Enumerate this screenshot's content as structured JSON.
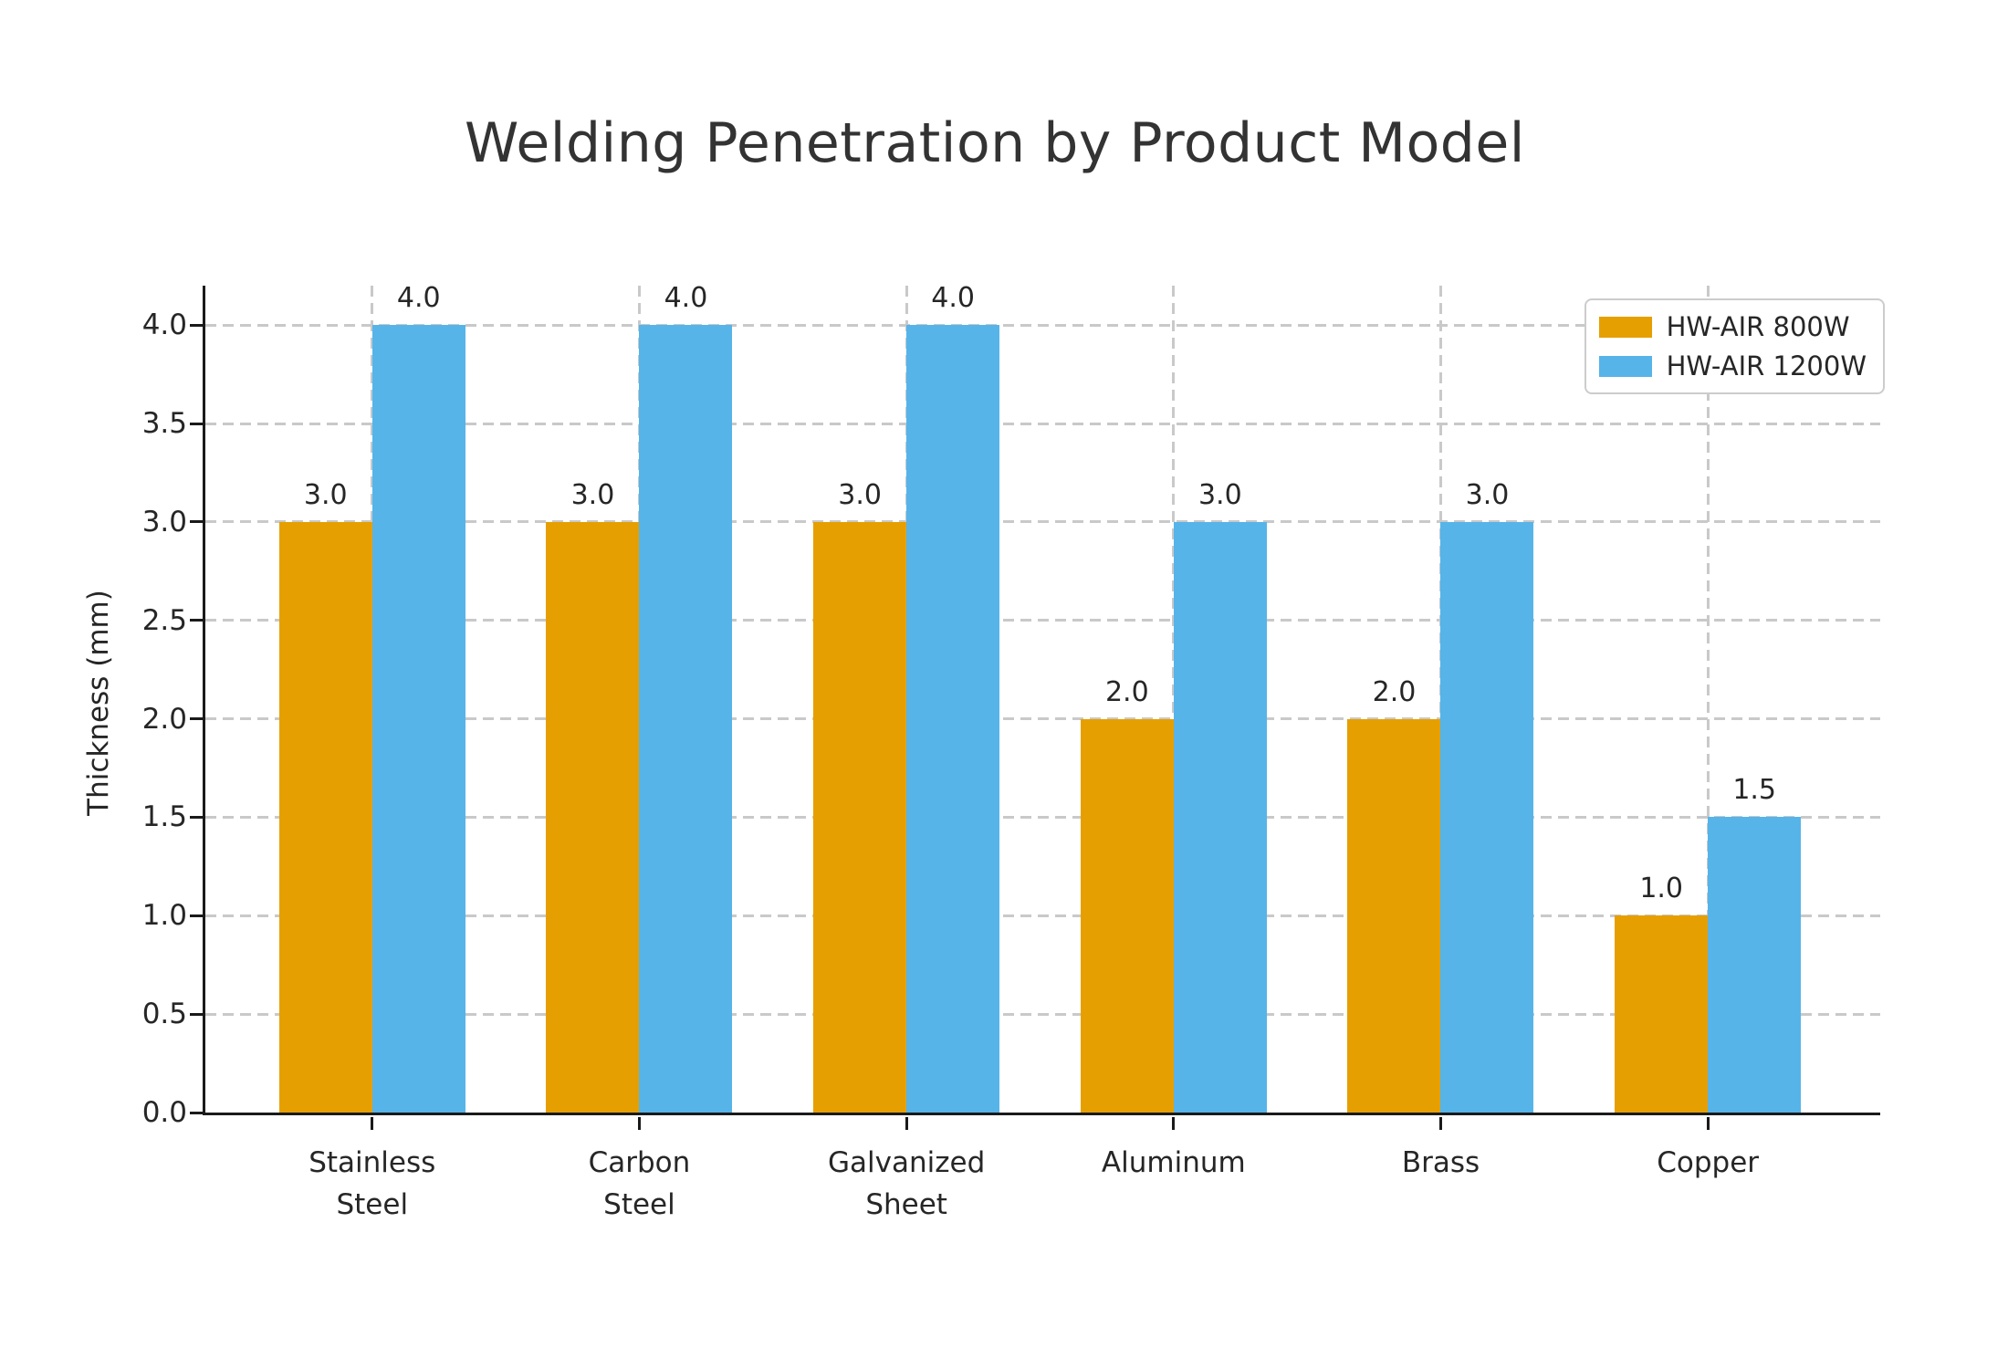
{
  "chart_data": {
    "type": "bar",
    "title": "Welding Penetration by Product Model",
    "ylabel": "Thickness (mm)",
    "xlabel": "",
    "categories": [
      "Stainless\nSteel",
      "Carbon\nSteel",
      "Galvanized\nSheet",
      "Aluminum",
      "Brass",
      "Copper"
    ],
    "series": [
      {
        "name": "HW-AIR 800W",
        "color": "#E69F00",
        "values": [
          3.0,
          3.0,
          3.0,
          2.0,
          2.0,
          1.0
        ]
      },
      {
        "name": "HW-AIR 1200W",
        "color": "#56B4E9",
        "values": [
          4.0,
          4.0,
          4.0,
          3.0,
          3.0,
          1.5
        ]
      }
    ],
    "ylim": [
      0,
      4.2
    ],
    "yticks": [
      0.0,
      0.5,
      1.0,
      1.5,
      2.0,
      2.5,
      3.0,
      3.5,
      4.0
    ],
    "value_label_format": "one-decimal",
    "grid": true,
    "grid_style": "dashed",
    "legend_position": "upper-right",
    "axis_color": "#1a1a1a",
    "grid_color": "#c9c9c9",
    "background_color": "#ffffff"
  }
}
